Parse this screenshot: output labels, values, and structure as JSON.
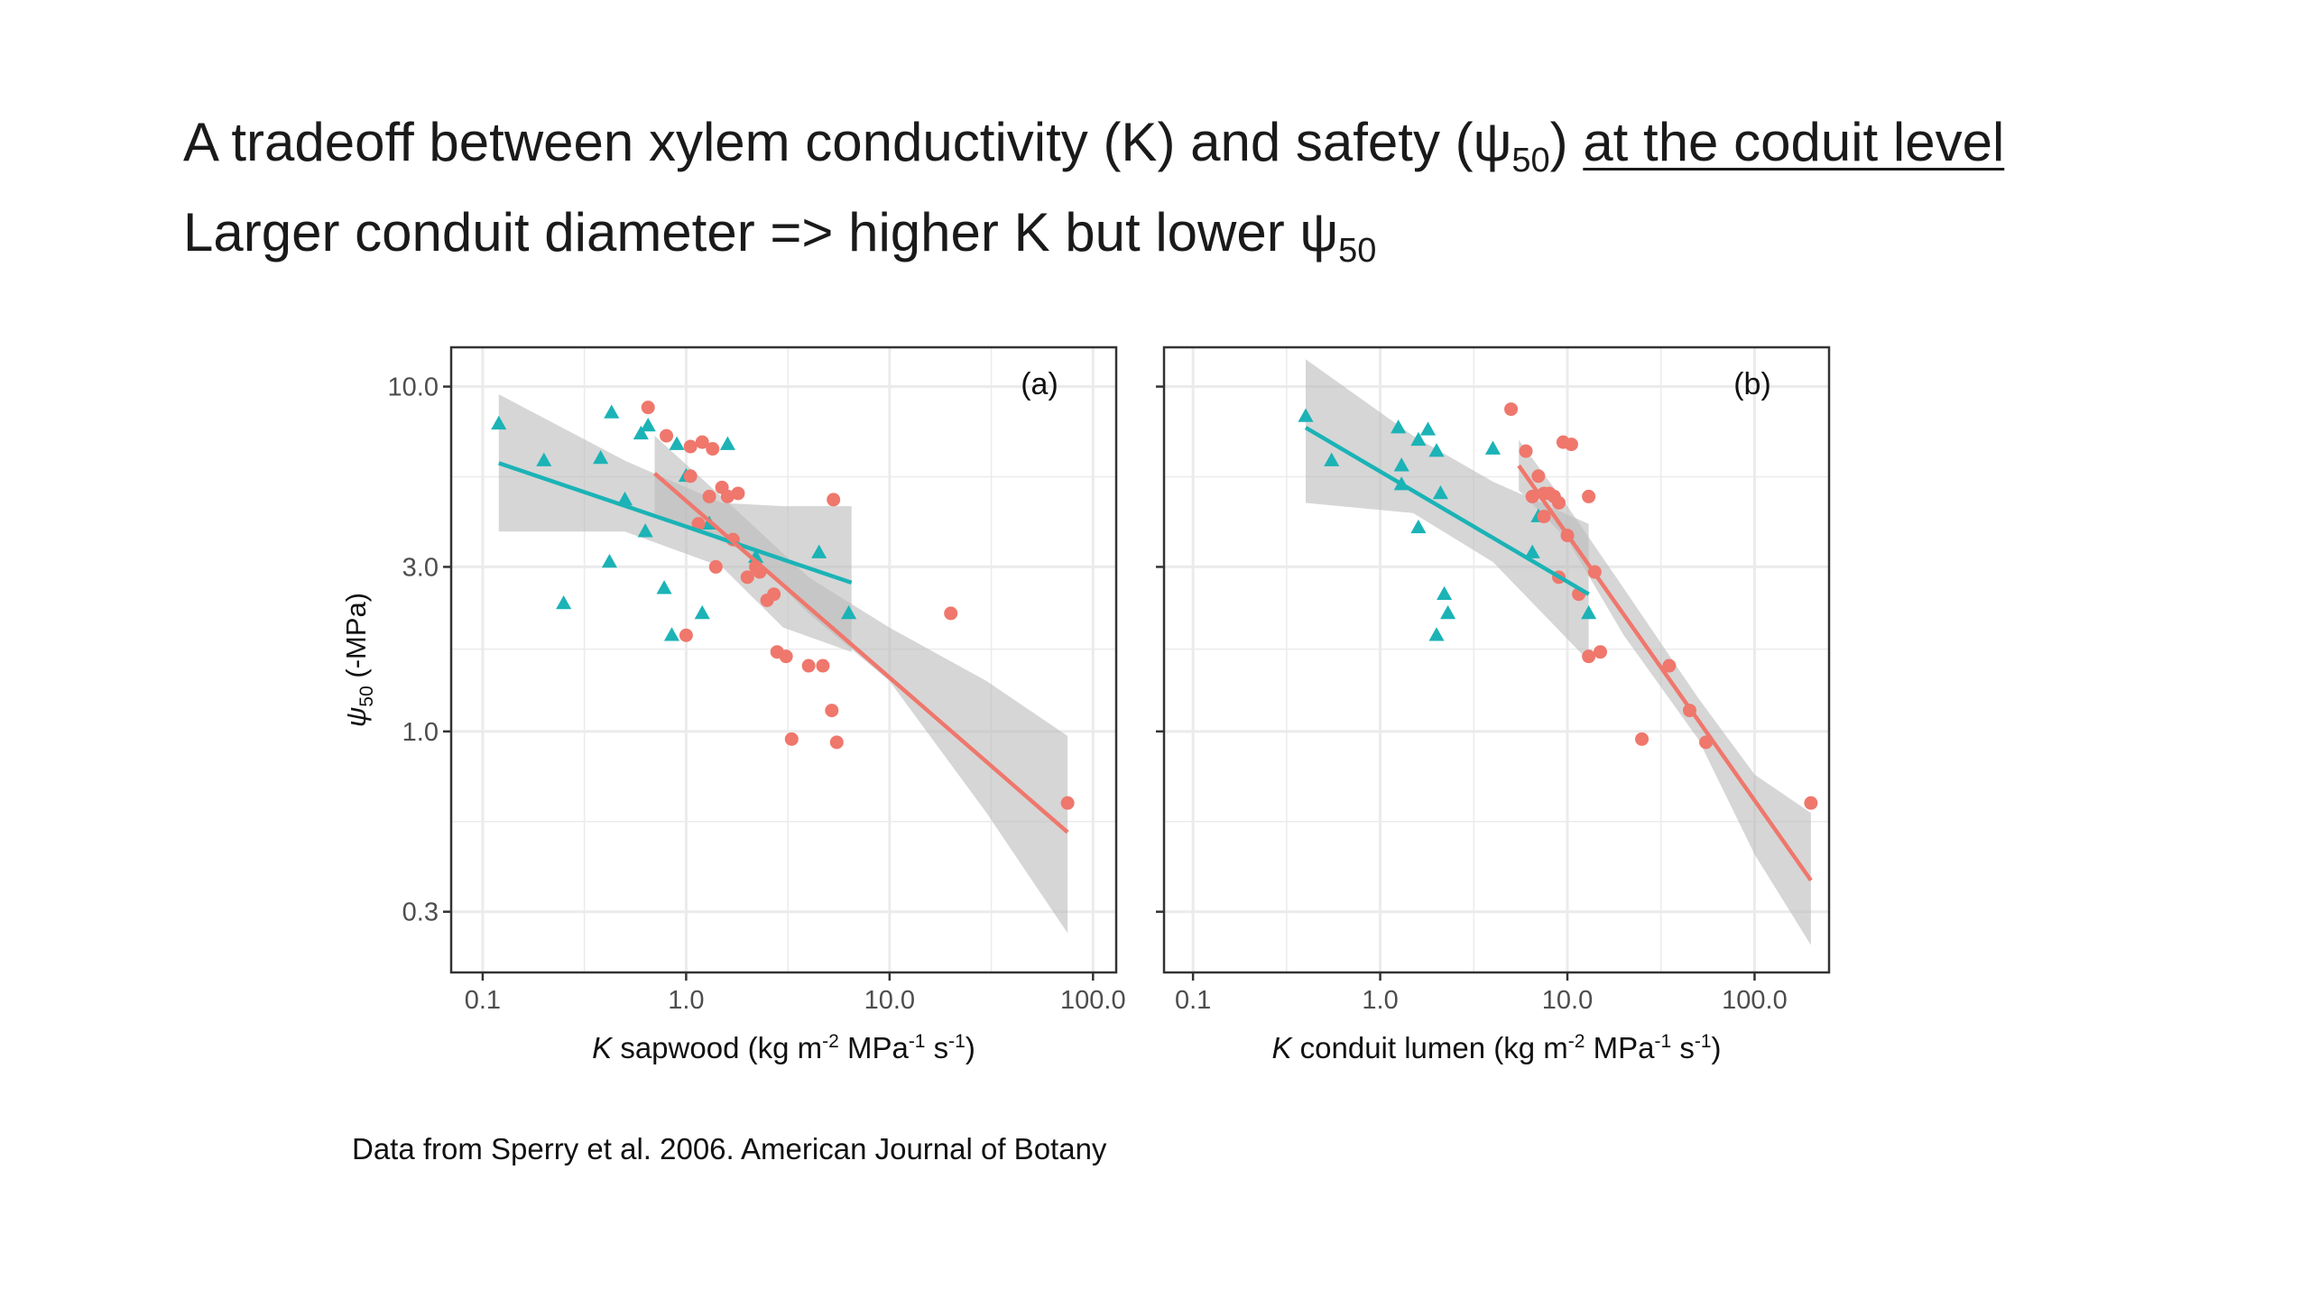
{
  "title": {
    "line1_main": "A tradeoff between xylem conductivity (K) and safety (ψ",
    "line1_sub": "50",
    "line1_close": ")",
    "line1_underlined": "at the coduit level",
    "line2_main": "Larger conduit diameter => higher K but lower ψ",
    "line2_sub": "50"
  },
  "source_note": "Data from Sperry et al. 2006. American Journal of Botany",
  "colors": {
    "series_triangle": "#1bb3b6",
    "series_circle": "#ef776c",
    "ribbon": "#bdbdbd",
    "grid": "#ebebeb"
  },
  "chart_data": [
    {
      "type": "scatter",
      "panel_label": "(a)",
      "x_scale": "log10",
      "y_scale": "log10",
      "xlim": [
        0.07,
        130
      ],
      "ylim": [
        0.2,
        13
      ],
      "xticks": [
        0.1,
        1.0,
        10.0,
        100.0
      ],
      "xtick_labels": [
        "0.1",
        "1.0",
        "10.0",
        "100.0"
      ],
      "yticks": [
        0.3,
        1.0,
        3.0,
        10.0
      ],
      "ytick_labels": [
        "0.3",
        "1.0",
        "3.0",
        "10.0"
      ],
      "xlabel_italic": "K",
      "xlabel_rest": " sapwood (kg m",
      "xlabel_sup1": "-2",
      "xlabel_mid": " MPa",
      "xlabel_sup2": "-1",
      "xlabel_end": " s",
      "xlabel_sup3": "-1",
      "xlabel_close": ")",
      "ylabel_symbol": "ψ",
      "ylabel_sub": "50",
      "ylabel_rest": " (-MPa)",
      "series": [
        {
          "marker": "triangle",
          "points": [
            [
              0.12,
              7.8
            ],
            [
              0.2,
              6.1
            ],
            [
              0.25,
              2.35
            ],
            [
              0.38,
              6.2
            ],
            [
              0.42,
              3.1
            ],
            [
              0.43,
              8.4
            ],
            [
              0.5,
              4.7
            ],
            [
              0.6,
              7.3
            ],
            [
              0.63,
              3.8
            ],
            [
              0.65,
              7.7
            ],
            [
              0.78,
              2.6
            ],
            [
              0.85,
              1.9
            ],
            [
              0.9,
              6.8
            ],
            [
              1.0,
              5.5
            ],
            [
              1.2,
              2.2
            ],
            [
              1.3,
              4.0
            ],
            [
              1.6,
              6.8
            ],
            [
              2.2,
              3.2
            ],
            [
              4.5,
              3.3
            ],
            [
              6.3,
              2.2
            ]
          ],
          "fit": [
            [
              0.12,
              6.0
            ],
            [
              6.5,
              2.7
            ]
          ],
          "ci_upper": [
            [
              0.12,
              9.5
            ],
            [
              0.5,
              6.1
            ],
            [
              1.5,
              4.6
            ],
            [
              3.0,
              4.5
            ],
            [
              6.5,
              4.5
            ]
          ],
          "ci_lower": [
            [
              0.12,
              3.8
            ],
            [
              0.5,
              3.8
            ],
            [
              1.5,
              3.0
            ],
            [
              3.0,
              2.0
            ],
            [
              6.5,
              1.7
            ]
          ]
        },
        {
          "marker": "circle",
          "points": [
            [
              0.65,
              8.7
            ],
            [
              0.8,
              7.2
            ],
            [
              1.0,
              1.9
            ],
            [
              1.05,
              5.5
            ],
            [
              1.05,
              6.7
            ],
            [
              1.15,
              4.0
            ],
            [
              1.2,
              6.9
            ],
            [
              1.3,
              4.8
            ],
            [
              1.35,
              6.6
            ],
            [
              1.4,
              3.0
            ],
            [
              1.5,
              5.1
            ],
            [
              1.6,
              4.8
            ],
            [
              1.7,
              3.6
            ],
            [
              1.8,
              4.9
            ],
            [
              2.0,
              2.8
            ],
            [
              2.2,
              3.0
            ],
            [
              2.3,
              2.9
            ],
            [
              2.5,
              2.4
            ],
            [
              2.7,
              2.5
            ],
            [
              2.8,
              1.7
            ],
            [
              3.1,
              1.65
            ],
            [
              3.3,
              0.95
            ],
            [
              4.0,
              1.55
            ],
            [
              4.7,
              1.55
            ],
            [
              5.2,
              1.15
            ],
            [
              5.3,
              4.7
            ],
            [
              5.5,
              0.93
            ],
            [
              20.0,
              2.2
            ],
            [
              75.0,
              0.62
            ]
          ],
          "fit": [
            [
              0.7,
              5.6
            ],
            [
              75.0,
              0.51
            ]
          ],
          "ci_upper": [
            [
              0.7,
              7.2
            ],
            [
              2.0,
              4.1
            ],
            [
              4.0,
              2.8
            ],
            [
              10.0,
              2.0
            ],
            [
              30.0,
              1.4
            ],
            [
              75.0,
              0.97
            ]
          ],
          "ci_lower": [
            [
              0.7,
              4.3
            ],
            [
              2.0,
              3.3
            ],
            [
              4.0,
              2.2
            ],
            [
              10.0,
              1.4
            ],
            [
              30.0,
              0.58
            ],
            [
              75.0,
              0.26
            ]
          ]
        }
      ]
    },
    {
      "type": "scatter",
      "panel_label": "(b)",
      "x_scale": "log10",
      "y_scale": "log10",
      "xlim": [
        0.07,
        250
      ],
      "ylim": [
        0.2,
        13
      ],
      "xticks": [
        0.1,
        1.0,
        10.0,
        100.0
      ],
      "xtick_labels": [
        "0.1",
        "1.0",
        "10.0",
        "100.0"
      ],
      "yticks": [
        0.3,
        1.0,
        3.0,
        10.0
      ],
      "ytick_labels": [
        "",
        "",
        "",
        ""
      ],
      "xlabel_italic": "K",
      "xlabel_rest": " conduit lumen (kg m",
      "xlabel_sup1": "-2",
      "xlabel_mid": " MPa",
      "xlabel_sup2": "-1",
      "xlabel_end": " s",
      "xlabel_sup3": "-1",
      "xlabel_close": ")",
      "series": [
        {
          "marker": "triangle",
          "points": [
            [
              0.4,
              8.2
            ],
            [
              0.55,
              6.1
            ],
            [
              1.25,
              7.6
            ],
            [
              1.3,
              5.9
            ],
            [
              1.3,
              5.2
            ],
            [
              1.6,
              7.0
            ],
            [
              1.6,
              3.9
            ],
            [
              1.8,
              7.5
            ],
            [
              2.0,
              6.5
            ],
            [
              2.0,
              1.9
            ],
            [
              2.1,
              4.9
            ],
            [
              2.2,
              2.5
            ],
            [
              2.3,
              2.2
            ],
            [
              4.0,
              6.6
            ],
            [
              6.5,
              3.3
            ],
            [
              7.0,
              4.2
            ],
            [
              13.0,
              2.2
            ]
          ],
          "fit": [
            [
              0.4,
              7.6
            ],
            [
              13.0,
              2.5
            ]
          ],
          "ci_upper": [
            [
              0.4,
              12.0
            ],
            [
              1.5,
              7.2
            ],
            [
              4.0,
              5.3
            ],
            [
              13.0,
              4.0
            ]
          ],
          "ci_lower": [
            [
              0.4,
              4.6
            ],
            [
              1.5,
              4.3
            ],
            [
              4.0,
              3.1
            ],
            [
              13.0,
              1.6
            ]
          ]
        },
        {
          "marker": "circle",
          "points": [
            [
              5.0,
              8.6
            ],
            [
              6.0,
              6.5
            ],
            [
              6.5,
              4.8
            ],
            [
              7.0,
              5.5
            ],
            [
              7.5,
              4.9
            ],
            [
              7.5,
              4.2
            ],
            [
              8.0,
              4.9
            ],
            [
              8.5,
              4.8
            ],
            [
              9.0,
              4.6
            ],
            [
              9.0,
              2.8
            ],
            [
              9.5,
              6.9
            ],
            [
              10.0,
              3.7
            ],
            [
              10.5,
              6.8
            ],
            [
              11.5,
              2.5
            ],
            [
              13.0,
              4.8
            ],
            [
              13.0,
              1.65
            ],
            [
              14.0,
              2.9
            ],
            [
              15.0,
              1.7
            ],
            [
              25.0,
              0.95
            ],
            [
              35.0,
              1.55
            ],
            [
              45.0,
              1.15
            ],
            [
              55.0,
              0.93
            ],
            [
              200.0,
              0.62
            ]
          ],
          "fit": [
            [
              5.5,
              5.9
            ],
            [
              200.0,
              0.37
            ]
          ],
          "ci_upper": [
            [
              5.5,
              7.0
            ],
            [
              10.0,
              4.5
            ],
            [
              20.0,
              2.6
            ],
            [
              50.0,
              1.25
            ],
            [
              100.0,
              0.75
            ],
            [
              200.0,
              0.58
            ]
          ],
          "ci_lower": [
            [
              5.5,
              5.0
            ],
            [
              10.0,
              3.6
            ],
            [
              20.0,
              1.9
            ],
            [
              50.0,
              0.95
            ],
            [
              100.0,
              0.44
            ],
            [
              200.0,
              0.24
            ]
          ]
        }
      ]
    }
  ]
}
